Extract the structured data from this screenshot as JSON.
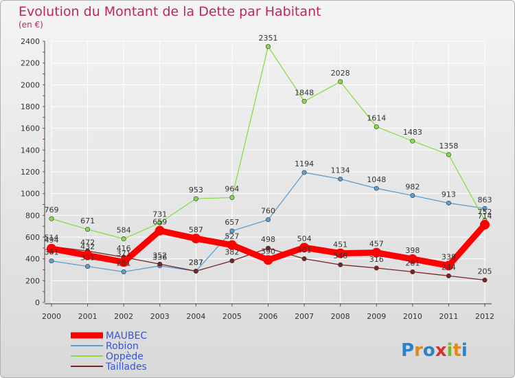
{
  "chart_data": {
    "type": "line",
    "title": "Evolution du Montant de la Dette par Habitant",
    "subtitle": "(en €)",
    "categories": [
      "2000",
      "2001",
      "2002",
      "2003",
      "2004",
      "2005",
      "2006",
      "2007",
      "2008",
      "2009",
      "2010",
      "2011",
      "2012"
    ],
    "ylim": [
      0,
      2400
    ],
    "yticks": [
      0,
      200,
      400,
      600,
      800,
      1000,
      1200,
      1400,
      1600,
      1800,
      2000,
      2200,
      2400
    ],
    "grid": true,
    "legend_position": "bottom-left",
    "series": [
      {
        "name": "MAUBEC",
        "color": "#ff0000",
        "values": [
          494,
          432,
          371,
          659,
          587,
          527,
          390,
          504,
          451,
          457,
          398,
          338,
          714
        ]
      },
      {
        "name": "Robion",
        "color": "#5f9fcf",
        "values": [
          381,
          331,
          281,
          336,
          287,
          657,
          760,
          1194,
          1134,
          1048,
          982,
          913,
          863
        ]
      },
      {
        "name": "Oppède",
        "color": "#88dd44",
        "values": [
          769,
          671,
          584,
          731,
          953,
          964,
          2351,
          1848,
          2028,
          1614,
          1483,
          1358,
          752
        ]
      },
      {
        "name": "Taillades",
        "color": "#7a2424",
        "values": [
          514,
          472,
          416,
          352,
          287,
          382,
          498,
          401,
          346,
          316,
          281,
          244,
          205
        ]
      }
    ]
  },
  "brand": {
    "text": "Proxiti"
  }
}
